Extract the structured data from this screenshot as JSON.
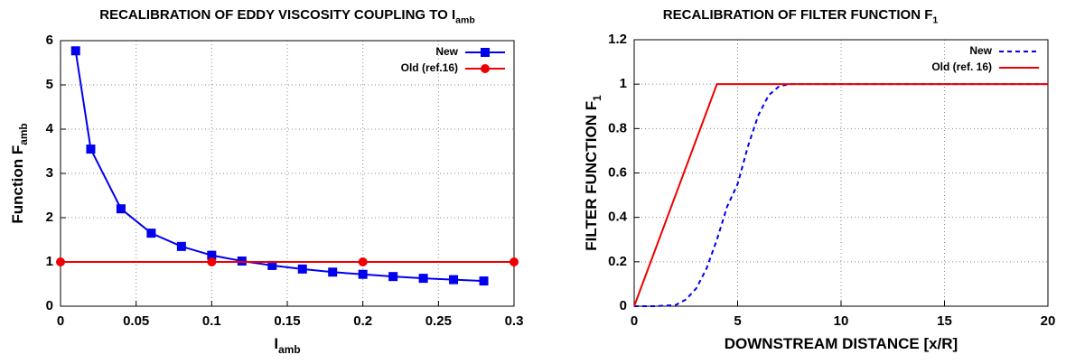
{
  "chart_data": [
    {
      "type": "line",
      "title": "RECALIBRATION OF EDDY VISCOSITY COUPLING TO I",
      "title_sub": "amb",
      "xlabel": "I",
      "xlabel_sub": "amb",
      "ylabel": "Function F",
      "ylabel_sub": "amb",
      "xlim": [
        0,
        0.3
      ],
      "xticks": [
        0,
        0.05,
        0.1,
        0.15,
        0.2,
        0.25,
        0.3
      ],
      "ylim": [
        0,
        6
      ],
      "yticks": [
        0,
        1,
        2,
        3,
        4,
        5,
        6
      ],
      "grid": true,
      "legend": "top-right",
      "series": [
        {
          "name": "New",
          "color": "#0000ee",
          "marker": "square",
          "dash": false,
          "x": [
            0.01,
            0.02,
            0.04,
            0.06,
            0.08,
            0.1,
            0.12,
            0.14,
            0.16,
            0.18,
            0.2,
            0.22,
            0.24,
            0.26,
            0.28
          ],
          "values": [
            5.77,
            3.55,
            2.2,
            1.65,
            1.35,
            1.15,
            1.02,
            0.92,
            0.84,
            0.77,
            0.72,
            0.67,
            0.63,
            0.6,
            0.57
          ]
        },
        {
          "name": "Old (ref.16)",
          "color": "#ee0000",
          "marker": "circle",
          "dash": false,
          "x": [
            0,
            0.1,
            0.2,
            0.3
          ],
          "values": [
            1,
            1,
            1,
            1
          ]
        }
      ]
    },
    {
      "type": "line",
      "title": "RECALIBRATION OF FILTER FUNCTION F",
      "title_sub": "1",
      "xlabel": "DOWNSTREAM DISTANCE [x/R]",
      "ylabel": "FILTER FUNCTION F",
      "ylabel_sub": "1",
      "xlim": [
        0,
        20
      ],
      "xticks": [
        0,
        5,
        10,
        15,
        20
      ],
      "ylim": [
        0,
        1.2
      ],
      "yticks": [
        0,
        0.2,
        0.4,
        0.6,
        0.8,
        1,
        1.2
      ],
      "grid": true,
      "legend": "top-right",
      "series": [
        {
          "name": "New",
          "color": "#0000ee",
          "marker": null,
          "dash": true,
          "x": [
            0,
            1,
            2,
            2.5,
            3,
            3.5,
            4,
            4.5,
            5,
            5.5,
            6,
            6.5,
            7,
            7.5,
            8,
            20
          ],
          "values": [
            0,
            0,
            0.005,
            0.03,
            0.08,
            0.17,
            0.3,
            0.45,
            0.55,
            0.72,
            0.86,
            0.95,
            0.99,
            1,
            1,
            1
          ]
        },
        {
          "name": "Old (ref. 16)",
          "color": "#ee0000",
          "marker": null,
          "dash": false,
          "x": [
            0,
            4,
            20
          ],
          "values": [
            0,
            1,
            1
          ]
        }
      ]
    }
  ]
}
